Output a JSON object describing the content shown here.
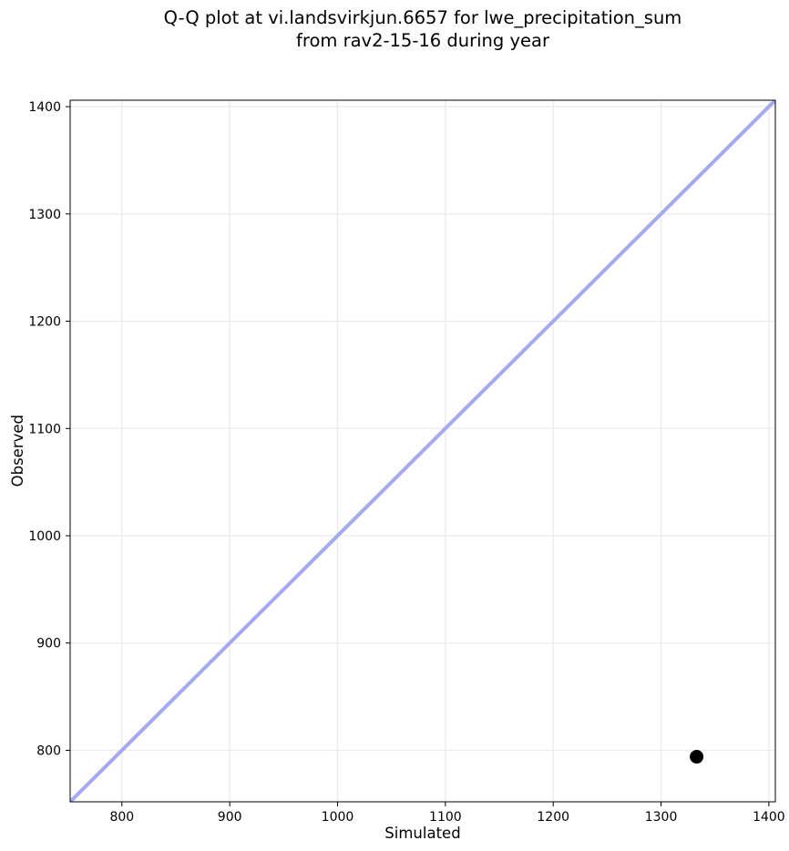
{
  "chart_data": {
    "type": "scatter",
    "title": "Q-Q plot at vi.landsvirkjun.6657 for lwe_precipitation_sum\nfrom rav2-15-16 during year",
    "title_lines": [
      "Q-Q plot at vi.landsvirkjun.6657 for lwe_precipitation_sum",
      "from rav2-15-16 during year"
    ],
    "xlabel": "Simulated",
    "ylabel": "Observed",
    "xlim": [
      752,
      1406
    ],
    "ylim": [
      752,
      1406
    ],
    "xticks": [
      800,
      900,
      1000,
      1100,
      1200,
      1300,
      1400
    ],
    "yticks": [
      800,
      900,
      1000,
      1100,
      1200,
      1300,
      1400
    ],
    "grid": true,
    "legend": false,
    "identity_line": {
      "description": "y = x reference line",
      "x1": 752,
      "y1": 752,
      "x2": 1406,
      "y2": 1406,
      "color": "#a3aaf0",
      "stroke_width": 4
    },
    "series": [
      {
        "name": "observed-vs-simulated-quantiles",
        "marker": "circle",
        "color": "#000000",
        "marker_radius": 7.5,
        "points": [
          {
            "x": 1333,
            "y": 794
          }
        ]
      }
    ],
    "colors": {
      "background": "#ffffff",
      "grid": "#ebebeb",
      "spine": "#000000",
      "tick": "#000000",
      "text": "#000000"
    }
  }
}
